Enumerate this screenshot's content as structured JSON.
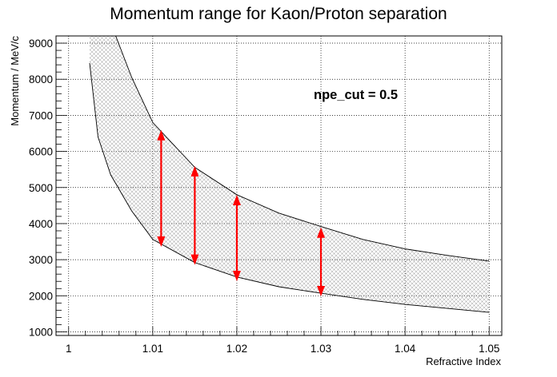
{
  "chart_data": {
    "type": "area",
    "title": "Momentum range for Kaon/Proton separation",
    "xlabel": "Refractive Index",
    "ylabel": "Momentum / MeV/c",
    "xlim": [
      0.9985,
      1.0515
    ],
    "ylim": [
      900,
      9200
    ],
    "x_ticks": [
      1,
      1.01,
      1.02,
      1.03,
      1.04,
      1.05
    ],
    "x_tick_labels": [
      "1",
      "1.01",
      "1.02",
      "1.03",
      "1.04",
      "1.05"
    ],
    "y_ticks": [
      1000,
      2000,
      3000,
      4000,
      5000,
      6000,
      7000,
      8000,
      9000
    ],
    "y_tick_labels": [
      "1000",
      "2000",
      "3000",
      "4000",
      "5000",
      "6000",
      "7000",
      "8000",
      "9000"
    ],
    "grid": true,
    "annotation": "npe_cut = 0.5",
    "band": {
      "n": [
        1.0025,
        1.0035,
        1.005,
        1.0075,
        1.01,
        1.015,
        1.02,
        1.025,
        1.03,
        1.035,
        1.04,
        1.045,
        1.05
      ],
      "lower": [
        8450,
        6400,
        5350,
        4350,
        3560,
        2920,
        2520,
        2250,
        2070,
        1900,
        1760,
        1650,
        1540
      ],
      "upper": [
        9200,
        9200,
        9200,
        8050,
        6800,
        5560,
        4800,
        4290,
        3920,
        3560,
        3300,
        3120,
        2960
      ],
      "upper_clipped_at_n": 1.0056
    },
    "arrows": [
      {
        "n": 1.011,
        "from": 3400,
        "to": 6550
      },
      {
        "n": 1.015,
        "from": 2900,
        "to": 5550
      },
      {
        "n": 1.02,
        "from": 2450,
        "to": 4750
      },
      {
        "n": 1.03,
        "from": 2030,
        "to": 3850
      }
    ],
    "colors": {
      "arrow": "#ff0000",
      "band_hatch": "#9a9a9a",
      "curve": "#000000"
    }
  }
}
